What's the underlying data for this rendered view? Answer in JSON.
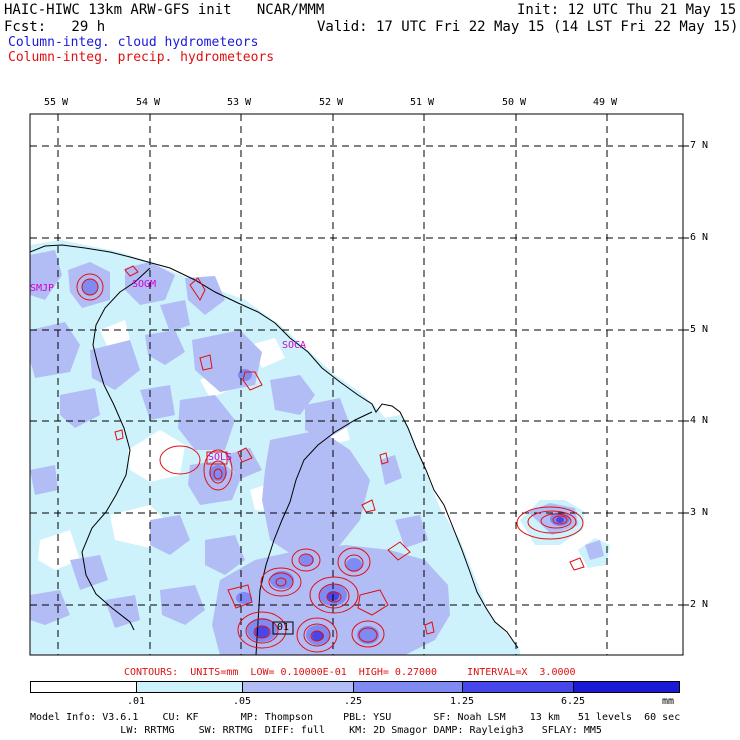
{
  "header": {
    "title_left": "HAIC-HIWC 13km ARW-GFS init   NCAR/MMM",
    "fcst_label": "Fcst:   29 h",
    "init": "Init: 12 UTC Thu 21 May 15",
    "valid": "Valid: 17 UTC Fri 22 May 15 (14 LST Fri 22 May 15)",
    "field_cloud": "Column-integ. cloud hydrometeors",
    "field_precip": "Column-integ. precip. hydrometeors"
  },
  "colors": {
    "cloud_text": "#1a1ad6",
    "precip_text": "#e01010",
    "station_text": "#d000d0",
    "shade_levels": [
      "#ffffff",
      "#cdf2fb",
      "#b3bdf5",
      "#7f8af2",
      "#4646ea",
      "#1a1ad6"
    ]
  },
  "map": {
    "lon_labels": [
      "55 W",
      "54 W",
      "53 W",
      "52 W",
      "51 W",
      "50 W",
      "49 W"
    ],
    "lat_labels": [
      "7 N",
      "6 N",
      "5 N",
      "4 N",
      "3 N",
      "2 N"
    ],
    "stations": [
      "SMJP",
      "SOCA",
      "SOGM",
      "SOLS",
      "01"
    ]
  },
  "contours_line": "CONTOURS:  UNITS=mm  LOW= 0.10000E-01  HIGH= 0.27000     INTERVAL=X  3.0000",
  "colorbar": {
    "labels": [
      ".01",
      ".05",
      ".25",
      "1.25",
      "6.25"
    ],
    "units": "mm"
  },
  "footer": {
    "line1": "Model Info: V3.6.1    CU: KF       MP: Thompson     PBL: YSU       SF: Noah LSM    13 km   51 levels  60 sec",
    "line2": "               LW: RRTMG    SW: RRTMG  DIFF: full    KM: 2D Smagor DAMP: Rayleigh3   SFLAY: MM5"
  }
}
